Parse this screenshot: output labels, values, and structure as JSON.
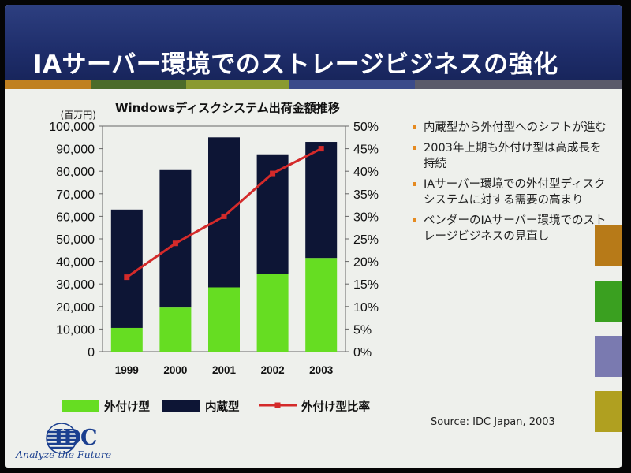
{
  "slide": {
    "title": "IAサーバー環境でのストレージビジネスの強化"
  },
  "bullets": [
    "内蔵型から外付型へのシフトが進む",
    "2003年上期も外付け型は高成長を持続",
    "IAサーバー環境での外付型ディスクシステムに対する需要の高まり",
    "ベンダーのIAサーバー環境でのストレージビジネスの見直し"
  ],
  "source": "Source: IDC Japan, 2003",
  "logo": {
    "text": "IDC",
    "tagline": "Analyze the Future"
  },
  "colors": {
    "external": "#66dd22",
    "internal": "#0d1535",
    "ratio_line": "#d42a2a",
    "bullet_marker": "#e58a20",
    "title_bar": "#1e2d6a"
  },
  "chart_data": {
    "type": "bar",
    "stacked": true,
    "title": "Windowsディスクシステム出荷金額推移",
    "y_unit": "(百万円)",
    "categories": [
      "1999",
      "2000",
      "2001",
      "2002",
      "2003"
    ],
    "ylim": [
      0,
      100000
    ],
    "yticks": [
      "0",
      "10,000",
      "20,000",
      "30,000",
      "40,000",
      "50,000",
      "60,000",
      "70,000",
      "80,000",
      "90,000",
      "100,000"
    ],
    "y2lim": [
      0,
      50
    ],
    "y2ticks": [
      "0%",
      "5%",
      "10%",
      "15%",
      "20%",
      "25%",
      "30%",
      "35%",
      "40%",
      "45%",
      "50%"
    ],
    "series": [
      {
        "name": "外付け型",
        "type": "bar",
        "values": [
          10500,
          19500,
          28500,
          34500,
          41500
        ]
      },
      {
        "name": "内蔵型",
        "type": "bar",
        "values": [
          52500,
          61000,
          66500,
          53000,
          51500
        ]
      },
      {
        "name": "外付け型比率",
        "type": "line",
        "axis": "right",
        "values": [
          16.5,
          24,
          30,
          39.5,
          45
        ]
      }
    ],
    "legend": "bottom"
  }
}
